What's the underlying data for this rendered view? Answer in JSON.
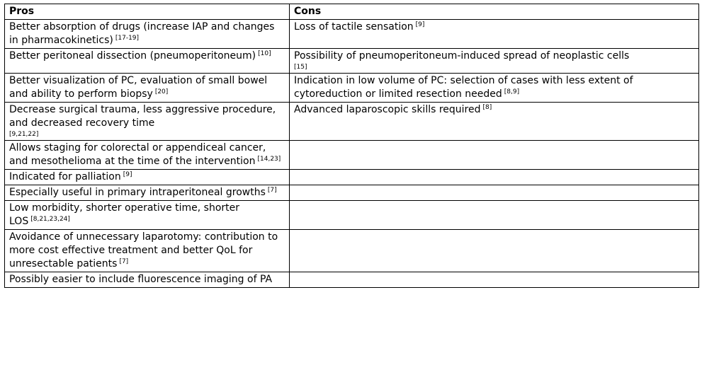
{
  "table": {
    "headers": [
      "Pros",
      "Cons"
    ],
    "rows": [
      {
        "pros": "Better absorption of drugs (increase IAP and changes in pharmacokinetics)",
        "pros_ref": "[17-19]",
        "cons": "Loss of tactile sensation",
        "cons_ref": "[9]"
      },
      {
        "pros": "Better peritoneal dissection (pneumoperitoneum)",
        "pros_ref": "[10]",
        "cons": "Possibility of pneumoperitoneum-induced spread of neoplastic cells",
        "cons_ref": "[15]"
      },
      {
        "pros": "Better visualization of PC, evaluation of small bowel and ability to perform biopsy",
        "pros_ref": "[20]",
        "cons": "Indication in low volume of PC: selection of cases with less extent of cytoreduction or limited resection needed",
        "cons_ref": "[8,9]"
      },
      {
        "pros": "Decrease surgical trauma, less aggressive procedure, and decreased recovery time",
        "pros_ref": "[9,21,22]",
        "cons": "Advanced laparoscopic skills required",
        "cons_ref": "[8]"
      },
      {
        "pros": "Allows staging for colorectal or appendiceal cancer, and mesothelioma at the time of the intervention",
        "pros_ref": "[14,23]",
        "cons": "",
        "cons_ref": ""
      },
      {
        "pros": "Indicated for palliation",
        "pros_ref": "[9]",
        "cons": "",
        "cons_ref": ""
      },
      {
        "pros": "Especially useful in primary intraperitoneal growths",
        "pros_ref": "[7]",
        "cons": "",
        "cons_ref": ""
      },
      {
        "pros": "Low morbidity, shorter operative time, shorter LOS",
        "pros_ref": "[8,21,23,24]",
        "cons": "",
        "cons_ref": ""
      },
      {
        "pros": "Avoidance of unnecessary laparotomy: contribution to more cost effective treatment and better QoL for unresectable patients",
        "pros_ref": "[7]",
        "cons": "",
        "cons_ref": ""
      },
      {
        "pros": "Possibly easier to include fluorescence imaging of PA",
        "pros_ref": "",
        "cons": "",
        "cons_ref": ""
      }
    ]
  }
}
